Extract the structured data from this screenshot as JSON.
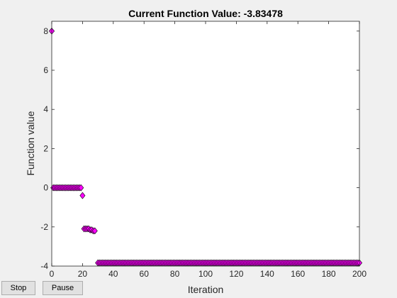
{
  "figure": {
    "title": "Current Function Value: -3.83478",
    "buttons": {
      "stop_label": "Stop",
      "pause_label": "Pause"
    }
  },
  "chart_data": {
    "type": "scatter",
    "title": "Current Function Value: -3.83478",
    "xlabel": "Iteration",
    "ylabel": "Function value",
    "xlim": [
      0,
      200
    ],
    "ylim": [
      -4,
      8.5
    ],
    "xticks": [
      0,
      20,
      40,
      60,
      80,
      100,
      120,
      140,
      160,
      180,
      200
    ],
    "yticks": [
      -4,
      -2,
      0,
      2,
      4,
      6,
      8
    ],
    "grid": false,
    "legend": "none",
    "marker": "diamond",
    "marker_color": "#ff00ff",
    "marker_edge_color": "#000000",
    "segments": [
      {
        "x_start": 0,
        "x_end": 0,
        "y": 8
      },
      {
        "x_start": 1,
        "x_end": 19,
        "y": 0
      },
      {
        "x_start": 20,
        "x_end": 20,
        "y": -0.4
      },
      {
        "x_start": 21,
        "x_end": 24,
        "y": -2.1
      },
      {
        "x_start": 25,
        "x_end": 26,
        "y": -2.15
      },
      {
        "x_start": 27,
        "x_end": 28,
        "y": -2.2
      },
      {
        "x_start": 30,
        "x_end": 200,
        "y": -3.83478
      }
    ]
  }
}
